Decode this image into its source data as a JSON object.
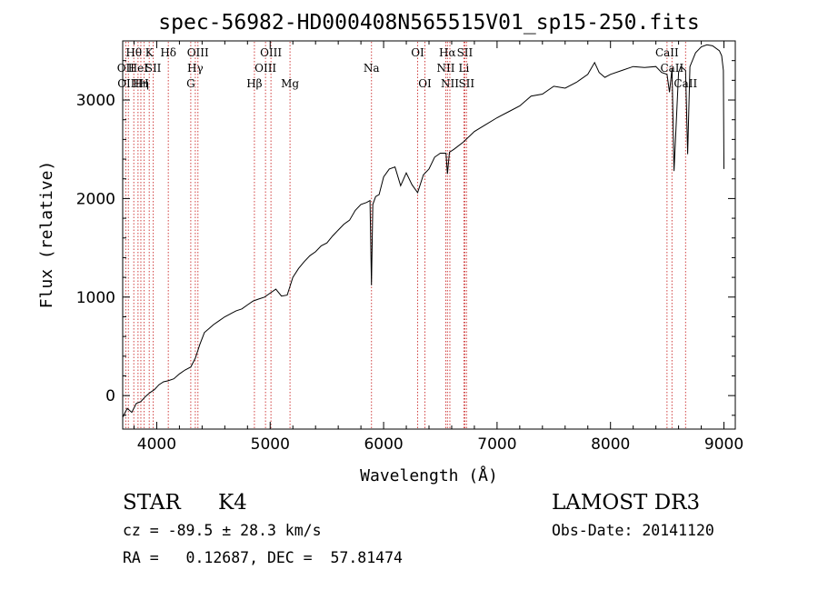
{
  "chart_data": {
    "type": "line",
    "title": "spec-56982-HD000408N565515V01_sp15-250.fits",
    "xlabel": "Wavelength (Å)",
    "ylabel": "Flux (relative)",
    "xlim": [
      3700,
      9100
    ],
    "ylim": [
      -340,
      3600
    ],
    "xticks": [
      4000,
      5000,
      6000,
      7000,
      8000,
      9000
    ],
    "yticks": [
      0,
      1000,
      2000,
      3000
    ],
    "grid": false,
    "line_color": "#000000",
    "marker_color": "#d04040",
    "series": [
      {
        "x": [
          3700,
          3740,
          3780,
          3820,
          3860,
          3900,
          3940,
          3980,
          4020,
          4060,
          4100,
          4150,
          4200,
          4250,
          4300,
          4340,
          4380,
          4420,
          4460,
          4500,
          4550,
          4600,
          4650,
          4700,
          4750,
          4800,
          4850,
          4900,
          4950,
          5000,
          5050,
          5100,
          5150,
          5200,
          5250,
          5300,
          5350,
          5400,
          5450,
          5500,
          5550,
          5600,
          5650,
          5700,
          5750,
          5800,
          5850,
          5880,
          5893,
          5905,
          5930,
          5960,
          6000,
          6050,
          6100,
          6150,
          6200,
          6250,
          6300,
          6350,
          6400,
          6450,
          6500,
          6550,
          6563,
          6580,
          6620,
          6700,
          6800,
          6900,
          7000,
          7100,
          7200,
          7300,
          7400,
          7500,
          7600,
          7700,
          7800,
          7860,
          7900,
          7950,
          8000,
          8100,
          8200,
          8300,
          8400,
          8450,
          8498,
          8520,
          8542,
          8560,
          8600,
          8620,
          8662,
          8680,
          8700,
          8750,
          8800,
          8850,
          8900,
          8960,
          8980,
          8995,
          9000
        ],
        "y": [
          -220,
          -130,
          -170,
          -80,
          -60,
          -10,
          30,
          60,
          110,
          140,
          150,
          170,
          220,
          260,
          290,
          380,
          520,
          640,
          680,
          720,
          760,
          800,
          830,
          860,
          880,
          920,
          960,
          980,
          1000,
          1040,
          1080,
          1010,
          1020,
          1200,
          1290,
          1360,
          1420,
          1460,
          1520,
          1550,
          1620,
          1680,
          1740,
          1780,
          1880,
          1940,
          1960,
          1980,
          1120,
          1940,
          2020,
          2040,
          2220,
          2300,
          2320,
          2130,
          2260,
          2140,
          2060,
          2240,
          2300,
          2420,
          2460,
          2460,
          2250,
          2470,
          2500,
          2570,
          2680,
          2750,
          2820,
          2880,
          2940,
          3040,
          3060,
          3140,
          3120,
          3180,
          3260,
          3380,
          3280,
          3230,
          3260,
          3300,
          3340,
          3330,
          3340,
          3280,
          3260,
          3080,
          3320,
          2280,
          3280,
          3340,
          3300,
          2450,
          3340,
          3480,
          3540,
          3560,
          3550,
          3500,
          3450,
          3300,
          2300
        ]
      }
    ],
    "line_markers": [
      {
        "x": 3727,
        "label": "OII",
        "row": 2
      },
      {
        "x": 3750,
        "label": "OIII",
        "row": 3
      },
      {
        "x": 3798,
        "label": "Hθ",
        "row": 1
      },
      {
        "x": 3835,
        "label": "HeI",
        "row": 2
      },
      {
        "x": 3860,
        "label": "Hη",
        "row": 3
      },
      {
        "x": 3889,
        "label": "H",
        "row": 3
      },
      {
        "x": 3934,
        "label": "K",
        "row": 1
      },
      {
        "x": 3969,
        "label": "SII",
        "row": 2
      },
      {
        "x": 4102,
        "label": "Hδ",
        "row": 1
      },
      {
        "x": 4300,
        "label": "G",
        "row": 3
      },
      {
        "x": 4340,
        "label": "Hγ",
        "row": 2
      },
      {
        "x": 4363,
        "label": "OIII",
        "row": 1
      },
      {
        "x": 4861,
        "label": "Hβ",
        "row": 3
      },
      {
        "x": 4959,
        "label": "OIII",
        "row": 2
      },
      {
        "x": 5007,
        "label": "OIII",
        "row": 1
      },
      {
        "x": 5175,
        "label": "Mg",
        "row": 3
      },
      {
        "x": 5893,
        "label": "Na",
        "row": 2
      },
      {
        "x": 6300,
        "label": "OI",
        "row": 1
      },
      {
        "x": 6364,
        "label": "OI",
        "row": 3
      },
      {
        "x": 6548,
        "label": "NII",
        "row": 2
      },
      {
        "x": 6563,
        "label": "Hα",
        "row": 1
      },
      {
        "x": 6584,
        "label": "NII",
        "row": 3
      },
      {
        "x": 6708,
        "label": "Li",
        "row": 2
      },
      {
        "x": 6716,
        "label": "SII",
        "row": 1
      },
      {
        "x": 6731,
        "label": "SII",
        "row": 3
      },
      {
        "x": 8498,
        "label": "CaII",
        "row": 1
      },
      {
        "x": 8542,
        "label": "CaII",
        "row": 2
      },
      {
        "x": 8662,
        "label": "CaII",
        "row": 3
      }
    ]
  },
  "info": {
    "object_class": "STAR",
    "subclass": "K4",
    "survey": "LAMOST DR3",
    "redshift_line": "cz = -89.5 ± 28.3 km/s",
    "obs_date": "Obs-Date: 20141120",
    "coords": "RA =   0.12687, DEC =  57.81474"
  }
}
